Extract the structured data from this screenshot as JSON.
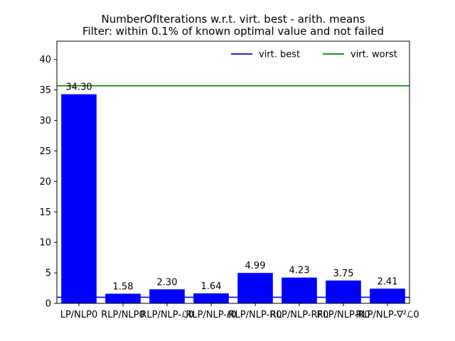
{
  "chart_data": {
    "type": "bar",
    "title_lines": [
      "NumberOfIterations w.r.t. virt. best - arith. means",
      "Filter: within 0.1% of known optimal value and not failed"
    ],
    "xlabel": "",
    "ylabel": "",
    "categories": [
      "LP/NLP0",
      "RLP/NLP0",
      "RLP/NLP-ℒ0",
      "RLP/NLP-ℓ0",
      "RLP/NLP-R0",
      "RLP/NLP-RF0",
      "RLP/NLP-R0",
      "RLP/NLP-∇²ℒ0"
    ],
    "values": [
      34.3,
      1.58,
      2.3,
      1.64,
      4.99,
      4.23,
      3.75,
      2.41
    ],
    "value_labels": [
      "34.30",
      "1.58",
      "2.30",
      "1.64",
      "4.99",
      "4.23",
      "3.75",
      "2.41"
    ],
    "bar_color": "#0000ff",
    "ylim": [
      0,
      43
    ],
    "yticks": [
      0,
      5,
      10,
      15,
      20,
      25,
      30,
      35,
      40
    ],
    "ytick_labels": [
      "0",
      "5",
      "10",
      "15",
      "20",
      "25",
      "30",
      "35",
      "40"
    ],
    "reference_lines": [
      {
        "name": "virt. best",
        "value": 1.0,
        "color": "#0000ff"
      },
      {
        "name": "virt. worst",
        "value": 35.7,
        "color": "#008000"
      }
    ],
    "legend": {
      "placement": "top-right",
      "entries": [
        "virt. best",
        "virt. worst"
      ]
    },
    "grid": false
  }
}
